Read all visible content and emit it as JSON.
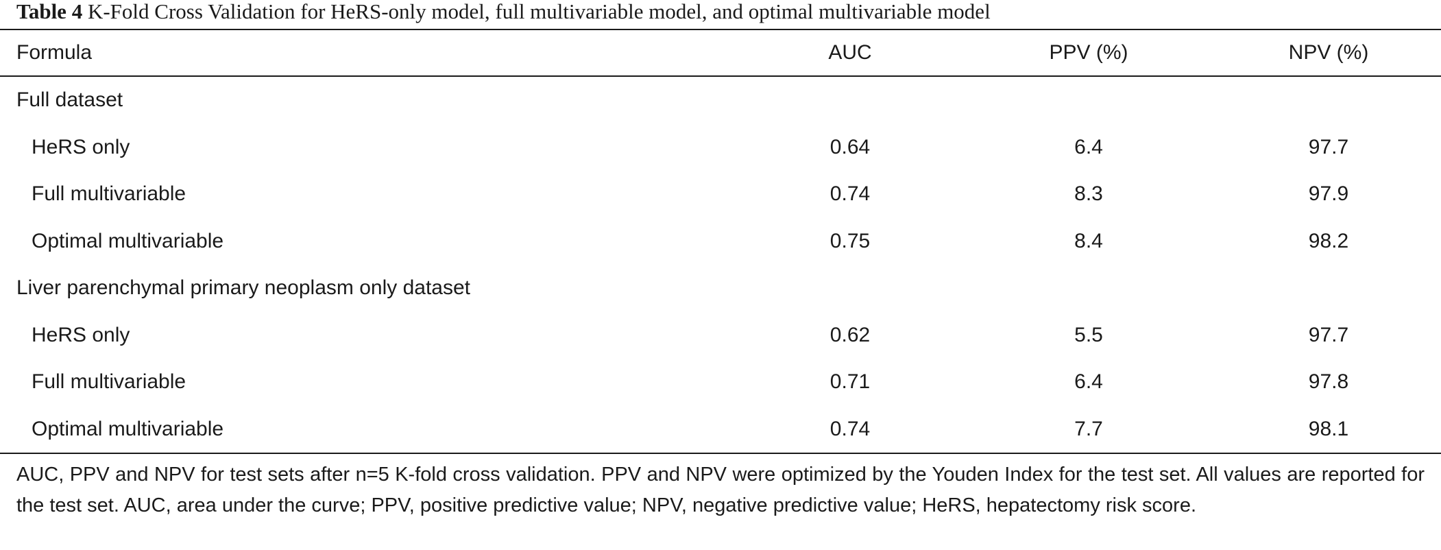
{
  "caption": {
    "label": "Table 4",
    "text": "K-Fold Cross Validation for HeRS-only model, full multivariable model, and optimal multivariable model"
  },
  "table": {
    "columns": [
      "Formula",
      "AUC",
      "PPV (%)",
      "NPV (%)"
    ],
    "sections": [
      {
        "title": "Full dataset",
        "rows": [
          {
            "formula": "HeRS only",
            "auc": "0.64",
            "ppv": "6.4",
            "npv": "97.7"
          },
          {
            "formula": "Full multivariable",
            "auc": "0.74",
            "ppv": "8.3",
            "npv": "97.9"
          },
          {
            "formula": "Optimal multivariable",
            "auc": "0.75",
            "ppv": "8.4",
            "npv": "98.2"
          }
        ]
      },
      {
        "title": "Liver parenchymal primary neoplasm only dataset",
        "rows": [
          {
            "formula": "HeRS only",
            "auc": "0.62",
            "ppv": "5.5",
            "npv": "97.7"
          },
          {
            "formula": "Full multivariable",
            "auc": "0.71",
            "ppv": "6.4",
            "npv": "97.8"
          },
          {
            "formula": "Optimal multivariable",
            "auc": "0.74",
            "ppv": "7.7",
            "npv": "98.1"
          }
        ]
      }
    ]
  },
  "footnote": "AUC, PPV and NPV for test sets after n=5 K-fold cross validation. PPV and NPV were optimized by the Youden Index for the test set. All values are reported for the test set. AUC, area under the curve; PPV, positive predictive value; NPV, negative predictive value; HeRS, hepatectomy risk score."
}
